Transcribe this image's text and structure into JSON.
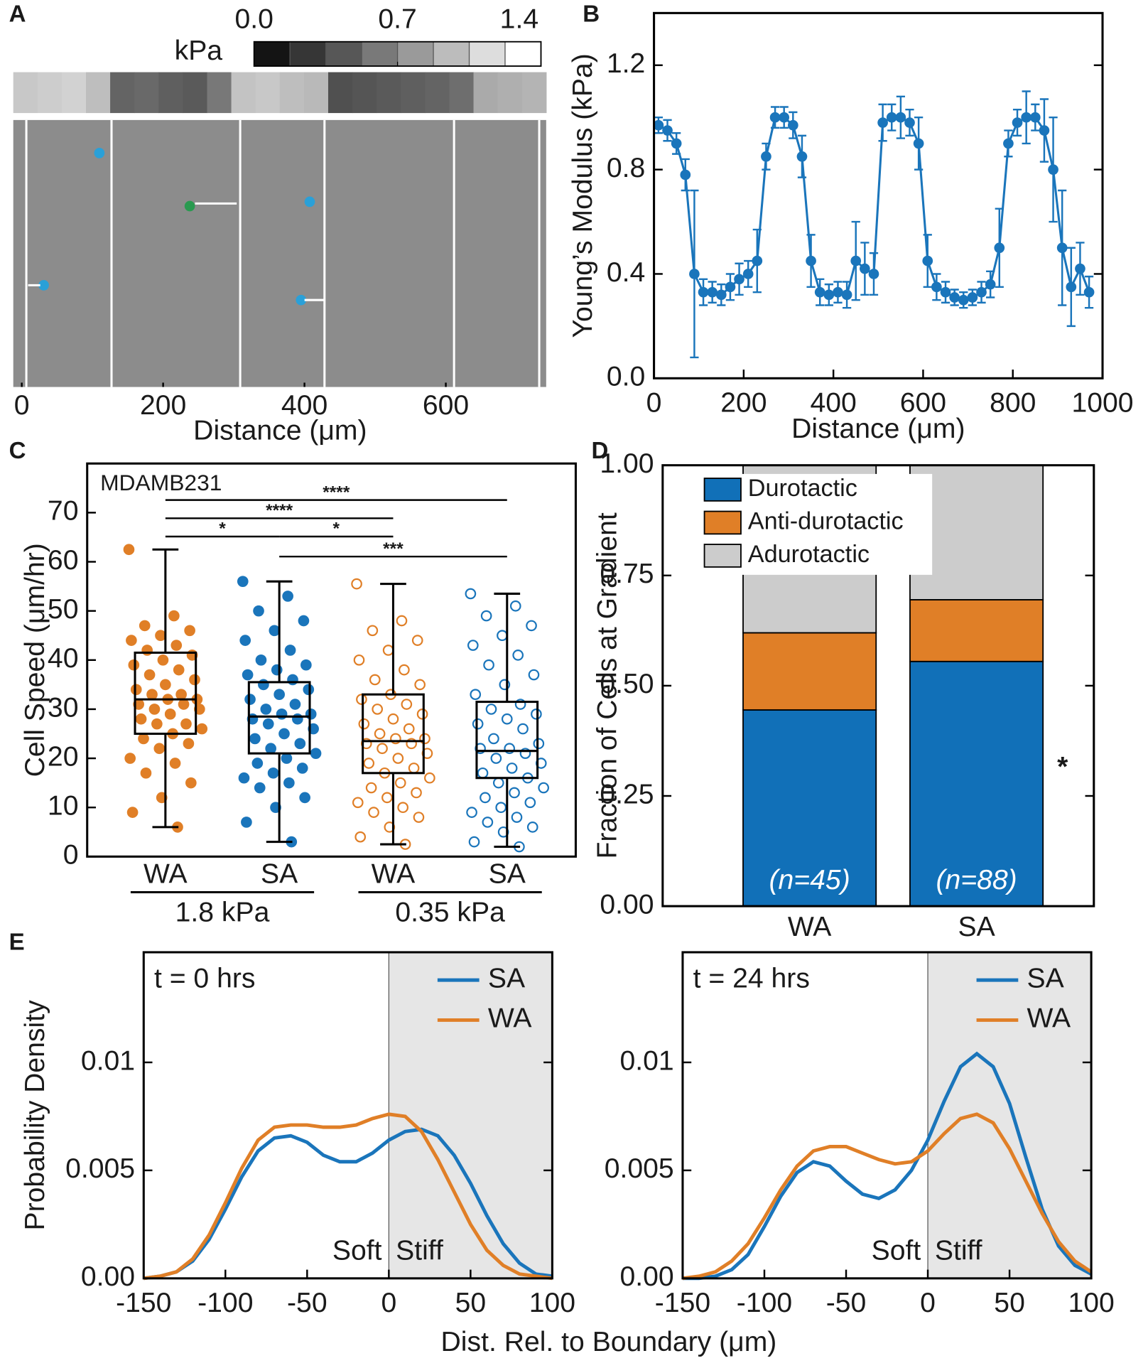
{
  "chart_data": [
    {
      "type": "image",
      "panel": "A",
      "colorbar_label": "kPa",
      "colorbar_lim": [
        0,
        1.4
      ],
      "colorbar_ticks": [
        {
          "value": 0,
          "label": "0.0"
        },
        0.7,
        1.4
      ],
      "x_label": "Distance (μm)",
      "xlim": [
        -12,
        742
      ],
      "xticks": [
        0,
        200,
        400,
        600
      ]
    },
    {
      "type": "line",
      "panel": "B",
      "x_label": "Distance (μm)",
      "y_label": "Young’s Modulus (kPa)",
      "xlim": [
        0,
        1000
      ],
      "xticks": [
        0,
        200,
        400,
        600,
        800,
        1000
      ],
      "ylim": [
        0,
        1.4
      ],
      "yticks": [
        {
          "value": 0,
          "label": "0.0"
        },
        0.4,
        0.8,
        1.2
      ],
      "markers": true,
      "x": [
        10,
        30,
        50,
        70,
        90,
        110,
        130,
        150,
        170,
        190,
        210,
        230,
        250,
        270,
        290,
        310,
        330,
        350,
        370,
        390,
        410,
        430,
        450,
        470,
        490,
        510,
        530,
        550,
        570,
        590,
        610,
        630,
        650,
        670,
        690,
        710,
        730,
        750,
        770,
        790,
        810,
        830,
        850,
        870,
        890,
        910,
        930,
        950,
        970
      ],
      "series": [
        {
          "color": "#1a75bb",
          "values": [
            0.97,
            0.95,
            0.9,
            0.78,
            0.4,
            0.33,
            0.33,
            0.32,
            0.35,
            0.38,
            0.4,
            0.45,
            0.85,
            1.0,
            1.0,
            0.97,
            0.85,
            0.45,
            0.33,
            0.32,
            0.33,
            0.32,
            0.45,
            0.42,
            0.4,
            0.98,
            1.0,
            1.0,
            0.98,
            0.9,
            0.45,
            0.35,
            0.33,
            0.31,
            0.3,
            0.31,
            0.33,
            0.36,
            0.5,
            0.9,
            0.98,
            1.0,
            1.0,
            0.95,
            0.8,
            0.5,
            0.35,
            0.42,
            0.33
          ],
          "errors": [
            0.03,
            0.04,
            0.04,
            0.06,
            0.32,
            0.05,
            0.04,
            0.04,
            0.05,
            0.06,
            0.05,
            0.12,
            0.05,
            0.04,
            0.04,
            0.05,
            0.08,
            0.1,
            0.05,
            0.04,
            0.04,
            0.05,
            0.15,
            0.1,
            0.08,
            0.07,
            0.05,
            0.08,
            0.05,
            0.1,
            0.1,
            0.05,
            0.04,
            0.03,
            0.03,
            0.03,
            0.04,
            0.05,
            0.15,
            0.05,
            0.05,
            0.1,
            0.05,
            0.12,
            0.2,
            0.22,
            0.15,
            0.1,
            0.06
          ]
        }
      ]
    },
    {
      "type": "box",
      "panel": "C",
      "annotation": "MDAMB231",
      "y_label": "Cell Speed (μm/hr)",
      "ylim": [
        0,
        80
      ],
      "yticks": [
        0,
        10,
        20,
        30,
        40,
        50,
        60,
        70
      ],
      "categories": [
        "WA",
        "SA",
        "WA",
        "SA"
      ],
      "groups": [
        "1.8 kPa",
        "0.35 kPa"
      ],
      "significance": [
        "****",
        "****",
        "*",
        "*",
        "***"
      ],
      "boxes": [
        {
          "color": "#e07f27",
          "filled": true,
          "min": 6,
          "q1": 25,
          "median": 32,
          "q3": 41.5,
          "max": 62.5,
          "points": [
            62.5,
            49,
            47,
            46,
            45,
            44,
            43,
            42,
            41,
            40,
            39,
            38,
            37,
            36,
            35,
            34,
            33,
            33,
            32,
            32,
            31,
            31,
            30,
            30,
            29,
            28,
            27,
            27,
            26,
            25,
            24,
            23,
            22,
            20,
            19,
            17,
            15,
            12,
            9,
            6
          ]
        },
        {
          "color": "#1a75bb",
          "filled": true,
          "min": 3,
          "q1": 21,
          "median": 28.5,
          "q3": 35.5,
          "max": 56,
          "points": [
            56,
            53,
            50,
            48,
            46,
            44,
            42,
            40,
            39,
            38,
            37,
            36,
            35,
            34,
            33,
            32,
            31,
            30,
            29,
            29,
            28,
            28,
            27,
            26,
            25,
            24,
            23,
            22,
            21,
            20,
            19,
            18,
            17,
            16,
            15,
            14,
            12,
            10,
            7,
            3
          ]
        },
        {
          "color": "#e07f27",
          "filled": false,
          "min": 2.5,
          "q1": 17,
          "median": 23.5,
          "q3": 33,
          "max": 55.5,
          "points": [
            55.5,
            48,
            46,
            44,
            42,
            40,
            38,
            36,
            35,
            33,
            32,
            31,
            30,
            29,
            28,
            27,
            26,
            25,
            24,
            24,
            23,
            23,
            22,
            21,
            20,
            19,
            18,
            17,
            16,
            15,
            14,
            13,
            12,
            11,
            10,
            9,
            8,
            6,
            4,
            2.5
          ]
        },
        {
          "color": "#1a75bb",
          "filled": false,
          "min": 2,
          "q1": 16,
          "median": 21.5,
          "q3": 31.5,
          "max": 53.5,
          "points": [
            53.5,
            51,
            49,
            47,
            45,
            43,
            41,
            39,
            37,
            35,
            33,
            31,
            30,
            29,
            28,
            27,
            26,
            24,
            23,
            22,
            22,
            21,
            20,
            19,
            18,
            17,
            16,
            15,
            14,
            13,
            12,
            11,
            10,
            9,
            8,
            7,
            6,
            5,
            3,
            2
          ]
        }
      ]
    },
    {
      "type": "bar",
      "panel": "D",
      "y_label": "Fraction of Cells at Gradient",
      "ylim": [
        0,
        1
      ],
      "yticks": [
        {
          "value": 0,
          "label": "0.00"
        },
        0.25,
        {
          "value": 0.5,
          "label": "0.50"
        },
        0.75,
        {
          "value": 1,
          "label": "1.00"
        }
      ],
      "categories": [
        "WA",
        "SA"
      ],
      "bar_labels": [
        "(n=45)",
        "(n=88)"
      ],
      "annotation": "*",
      "legend": "upper left",
      "series": [
        {
          "name": "Durotactic",
          "color": "#1170b8",
          "values": [
            0.445,
            0.555
          ]
        },
        {
          "name": "Anti-durotactic",
          "color": "#e07f27",
          "values": [
            0.175,
            0.14
          ]
        },
        {
          "name": "Adurotactic",
          "color": "#cccccc",
          "values": [
            0.38,
            0.305
          ]
        }
      ]
    },
    {
      "type": "line",
      "panel": "E",
      "title": "t = 0 hrs",
      "x_label": "Dist. Rel. to Boundary (μm)",
      "y_label": "Probability Density",
      "xlim": [
        -150,
        100
      ],
      "xticks": [
        -150,
        -100,
        -50,
        0,
        50,
        100
      ],
      "ylim": [
        0,
        0.0151
      ],
      "yticks": [
        {
          "value": 0,
          "label": "0.00"
        },
        0.005,
        0.01
      ],
      "legend": "upper right",
      "shade_xrange": [
        0,
        100
      ],
      "annotations": [
        "Soft",
        "Stiff"
      ],
      "x": [
        -150,
        -140,
        -130,
        -120,
        -110,
        -100,
        -90,
        -80,
        -70,
        -60,
        -50,
        -40,
        -30,
        -20,
        -10,
        0,
        10,
        20,
        30,
        40,
        50,
        60,
        70,
        80,
        90,
        100
      ],
      "series": [
        {
          "name": "SA",
          "color": "#1a75bb",
          "values": [
            0,
            0.0001,
            0.0003,
            0.0008,
            0.0018,
            0.0032,
            0.0047,
            0.0059,
            0.0065,
            0.0066,
            0.0063,
            0.0057,
            0.0054,
            0.0054,
            0.0058,
            0.0064,
            0.0068,
            0.0069,
            0.0066,
            0.0057,
            0.0044,
            0.0029,
            0.0016,
            0.0007,
            0.0002,
            0.0001
          ]
        },
        {
          "name": "WA",
          "color": "#e07f27",
          "values": [
            0,
            0.0001,
            0.0003,
            0.0009,
            0.002,
            0.0035,
            0.0051,
            0.0064,
            0.007,
            0.0071,
            0.0071,
            0.007,
            0.007,
            0.0071,
            0.0074,
            0.0076,
            0.0075,
            0.0068,
            0.0055,
            0.004,
            0.0025,
            0.0013,
            0.0006,
            0.0002,
            0.0001,
            0
          ]
        }
      ]
    },
    {
      "type": "line",
      "title": "t = 24 hrs",
      "xlim": [
        -150,
        100
      ],
      "xticks": [
        -150,
        -100,
        -50,
        0,
        50,
        100
      ],
      "ylim": [
        0,
        0.0151
      ],
      "yticks": [
        {
          "value": 0,
          "label": "0.00"
        },
        0.005,
        0.01
      ],
      "legend": "upper right",
      "shade_xrange": [
        0,
        100
      ],
      "annotations": [
        "Soft",
        "Stiff"
      ],
      "x": [
        -150,
        -140,
        -130,
        -120,
        -110,
        -100,
        -90,
        -80,
        -70,
        -60,
        -50,
        -40,
        -30,
        -20,
        -10,
        0,
        10,
        20,
        30,
        40,
        50,
        60,
        70,
        80,
        90,
        100
      ],
      "series": [
        {
          "name": "SA",
          "color": "#1a75bb",
          "values": [
            0,
            0,
            0.0001,
            0.0004,
            0.0011,
            0.0024,
            0.0038,
            0.0049,
            0.0054,
            0.0052,
            0.0045,
            0.0039,
            0.0037,
            0.0041,
            0.005,
            0.0064,
            0.0082,
            0.0098,
            0.0104,
            0.0098,
            0.0081,
            0.0056,
            0.0032,
            0.0015,
            0.0006,
            0.0002
          ]
        },
        {
          "name": "WA",
          "color": "#e07f27",
          "values": [
            0,
            0.0001,
            0.0003,
            0.0008,
            0.0016,
            0.0028,
            0.0041,
            0.0052,
            0.0059,
            0.0061,
            0.0061,
            0.0058,
            0.0055,
            0.0053,
            0.0054,
            0.0059,
            0.0067,
            0.0074,
            0.0076,
            0.0072,
            0.006,
            0.0045,
            0.003,
            0.0017,
            0.0008,
            0.0003
          ]
        }
      ]
    }
  ]
}
